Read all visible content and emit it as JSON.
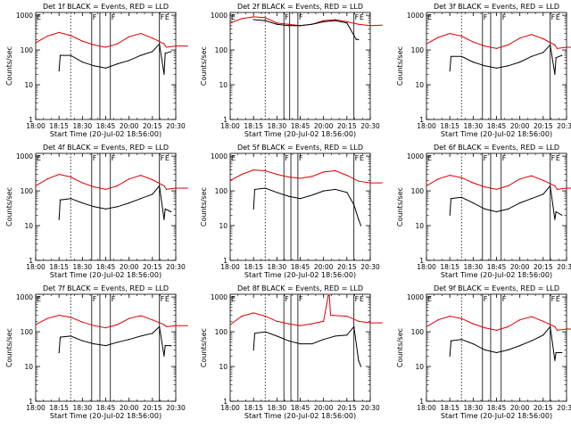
{
  "colors": {
    "events": "#000000",
    "lld": "#dd0000",
    "background": "#ffffff"
  },
  "chart_data": [
    {
      "type": "line",
      "title": "Det 1f BLACK = Events, RED = LLD",
      "xlabel": "Start Time (20-Jul-02 18:56:00)",
      "ylabel": "Counts/sec",
      "xticks": [
        "18:00",
        "18:15",
        "18:30",
        "18:45",
        "20:00",
        "20:15",
        "20:30"
      ],
      "yticks": [
        "1",
        "10",
        "100",
        "1000"
      ],
      "ylim": [
        1,
        1200
      ],
      "yscale": "log",
      "dotted_line_index": 1.5,
      "solid_lines": [
        2.4,
        2.75,
        3.2,
        5.3
      ],
      "flags": [
        {
          "pos": 0,
          "label": "E"
        },
        {
          "pos": 2.4,
          "label": "F"
        },
        {
          "pos": 3.2,
          "label": "F"
        },
        {
          "pos": 5.3,
          "label": "F"
        },
        {
          "pos": 5.5,
          "label": "E"
        }
      ],
      "series": [
        {
          "name": "LLD",
          "x": [
            0,
            0.5,
            1,
            1.5,
            2,
            2.5,
            3,
            3.5,
            4,
            4.5,
            5,
            5.5,
            5.6,
            6,
            6.5
          ],
          "values": [
            160,
            250,
            320,
            260,
            180,
            140,
            120,
            150,
            240,
            300,
            220,
            150,
            120,
            130,
            130
          ]
        },
        {
          "name": "Events",
          "x": [
            1,
            1.05,
            1.5,
            2,
            2.5,
            3,
            3.5,
            4,
            4.5,
            5,
            5.3,
            5.5,
            5.55,
            5.8
          ],
          "values": [
            25,
            70,
            70,
            45,
            35,
            30,
            40,
            50,
            70,
            90,
            150,
            20,
            80,
            90
          ]
        }
      ]
    },
    {
      "type": "line",
      "title": "Det 2f BLACK = Events, RED = LLD",
      "xlabel": "Start Time (20-Jul-02 18:56:00)",
      "ylabel": "Counts/sec",
      "xticks": [
        "18:00",
        "18:15",
        "18:30",
        "18:45",
        "20:00",
        "20:15",
        "20:30"
      ],
      "yticks": [
        "1",
        "10",
        "100",
        "1000"
      ],
      "ylim": [
        1,
        1200
      ],
      "yscale": "log",
      "dotted_line_index": 1.5,
      "solid_lines": [
        2.3,
        2.55,
        2.9,
        5.3
      ],
      "flags": [
        {
          "pos": 0,
          "label": "E"
        },
        {
          "pos": 2.3,
          "label": "F"
        },
        {
          "pos": 2.9,
          "label": "F"
        },
        {
          "pos": 5.3,
          "label": "F"
        },
        {
          "pos": 5.5,
          "label": "E"
        }
      ],
      "series": [
        {
          "name": "LLD",
          "x": [
            0,
            0.5,
            1,
            1.5,
            2,
            2.5,
            3,
            3.5,
            4,
            4.5,
            5,
            5.5,
            6,
            6.5
          ],
          "values": [
            600,
            800,
            900,
            850,
            600,
            550,
            500,
            550,
            700,
            750,
            650,
            550,
            500,
            520
          ]
        },
        {
          "name": "Events",
          "x": [
            1,
            1.5,
            2,
            2.5,
            3,
            3.5,
            4,
            4.5,
            5,
            5.4,
            5.5
          ],
          "values": [
            750,
            700,
            550,
            500,
            500,
            550,
            650,
            700,
            600,
            200,
            200
          ]
        }
      ]
    },
    {
      "type": "line",
      "title": "Det 3f BLACK = Events, RED = LLD",
      "xlabel": "Start Time (20-Jul-02 18:56:00)",
      "ylabel": "Counts/sec",
      "xticks": [
        "18:00",
        "18:15",
        "18:30",
        "18:45",
        "20:00",
        "20:15",
        "20:30"
      ],
      "yticks": [
        "1",
        "10",
        "100",
        "1000"
      ],
      "ylim": [
        1,
        1200
      ],
      "yscale": "log",
      "dotted_line_index": 1.5,
      "solid_lines": [
        2.4,
        2.75,
        3.2,
        5.3
      ],
      "flags": [
        {
          "pos": 0,
          "label": "E"
        },
        {
          "pos": 2.4,
          "label": "F"
        },
        {
          "pos": 3.2,
          "label": "F"
        },
        {
          "pos": 5.3,
          "label": "F"
        },
        {
          "pos": 5.5,
          "label": "E"
        }
      ],
      "series": [
        {
          "name": "LLD",
          "x": [
            0,
            0.5,
            1,
            1.5,
            2,
            2.5,
            3,
            3.5,
            4,
            4.5,
            5,
            5.5,
            5.6,
            6,
            6.5
          ],
          "values": [
            150,
            230,
            300,
            250,
            170,
            130,
            110,
            140,
            220,
            280,
            210,
            140,
            110,
            120,
            120
          ]
        },
        {
          "name": "Events",
          "x": [
            1,
            1.05,
            1.5,
            2,
            2.5,
            3,
            3.5,
            4,
            4.5,
            5,
            5.3,
            5.5,
            5.55,
            5.8
          ],
          "values": [
            25,
            65,
            65,
            45,
            35,
            30,
            35,
            45,
            65,
            85,
            140,
            20,
            60,
            70
          ]
        }
      ]
    },
    {
      "type": "line",
      "title": "Det 4f BLACK = Events, RED = LLD",
      "xlabel": "Start Time (20-Jul-02 18:56:00)",
      "ylabel": "Counts/sec",
      "xticks": [
        "18:00",
        "18:15",
        "18:30",
        "18:45",
        "20:00",
        "20:15",
        "20:30"
      ],
      "yticks": [
        "1",
        "10",
        "100",
        "1000"
      ],
      "ylim": [
        1,
        1200
      ],
      "yscale": "log",
      "dotted_line_index": 1.5,
      "solid_lines": [
        2.4,
        2.75,
        3.2,
        5.3
      ],
      "flags": [
        {
          "pos": 0,
          "label": "E"
        },
        {
          "pos": 2.4,
          "label": "F"
        },
        {
          "pos": 3.2,
          "label": "F"
        },
        {
          "pos": 5.3,
          "label": "F"
        },
        {
          "pos": 5.5,
          "label": "E"
        }
      ],
      "series": [
        {
          "name": "LLD",
          "x": [
            0,
            0.5,
            1,
            1.5,
            2,
            2.5,
            3,
            3.5,
            4,
            4.5,
            5,
            5.5,
            5.6,
            6,
            6.5
          ],
          "values": [
            140,
            220,
            300,
            250,
            170,
            130,
            110,
            140,
            220,
            280,
            210,
            140,
            110,
            120,
            120
          ]
        },
        {
          "name": "Events",
          "x": [
            1,
            1.05,
            1.5,
            2,
            2.5,
            3,
            3.5,
            4,
            4.5,
            5,
            5.3,
            5.5,
            5.55,
            5.8
          ],
          "values": [
            15,
            55,
            60,
            45,
            35,
            30,
            35,
            45,
            60,
            80,
            140,
            15,
            30,
            25
          ]
        }
      ]
    },
    {
      "type": "line",
      "title": "Det 5f BLACK = Events, RED = LLD",
      "xlabel": "Start Time (20-Jul-02 18:56:00)",
      "ylabel": "Counts/sec",
      "xticks": [
        "18:00",
        "18:15",
        "18:30",
        "18:45",
        "20:00",
        "20:15",
        "20:30"
      ],
      "yticks": [
        "1",
        "10",
        "100",
        "1000"
      ],
      "ylim": [
        1,
        1200
      ],
      "yscale": "log",
      "dotted_line_index": 1.5,
      "solid_lines": [
        2.3,
        2.6,
        2.9,
        5.3
      ],
      "flags": [
        {
          "pos": 0,
          "label": "E"
        },
        {
          "pos": 2.3,
          "label": "F"
        },
        {
          "pos": 2.9,
          "label": "F"
        },
        {
          "pos": 5.3,
          "label": "F"
        },
        {
          "pos": 5.5,
          "label": "E"
        }
      ],
      "series": [
        {
          "name": "LLD",
          "x": [
            0,
            0.5,
            1,
            1.5,
            2,
            2.5,
            3,
            3.5,
            4,
            4.5,
            5,
            5.5,
            6,
            6.5
          ],
          "values": [
            200,
            300,
            400,
            380,
            300,
            250,
            230,
            260,
            350,
            380,
            280,
            190,
            170,
            170
          ]
        },
        {
          "name": "Events",
          "x": [
            1,
            1.05,
            1.5,
            2,
            2.5,
            3,
            3.5,
            4,
            4.5,
            5,
            5.3,
            5.5,
            5.6
          ],
          "values": [
            30,
            110,
            120,
            90,
            70,
            60,
            75,
            100,
            110,
            90,
            40,
            15,
            10
          ]
        }
      ]
    },
    {
      "type": "line",
      "title": "Det 6f BLACK = Events, RED = LLD",
      "xlabel": "Start Time (20-Jul-02 18:56:00)",
      "ylabel": "Counts/sec",
      "xticks": [
        "18:00",
        "18:15",
        "18:30",
        "18:45",
        "20:00",
        "20:15",
        "20:30"
      ],
      "yticks": [
        "1",
        "10",
        "100",
        "1000"
      ],
      "ylim": [
        1,
        1200
      ],
      "yscale": "log",
      "dotted_line_index": 1.5,
      "solid_lines": [
        2.4,
        2.75,
        3.2,
        5.3
      ],
      "flags": [
        {
          "pos": 0,
          "label": "E"
        },
        {
          "pos": 2.4,
          "label": "F"
        },
        {
          "pos": 3.2,
          "label": "F"
        },
        {
          "pos": 5.3,
          "label": "F"
        },
        {
          "pos": 5.5,
          "label": "E"
        }
      ],
      "series": [
        {
          "name": "LLD",
          "x": [
            0,
            0.5,
            1,
            1.5,
            2,
            2.5,
            3,
            3.5,
            4,
            4.5,
            5,
            5.5,
            5.6,
            6,
            6.5
          ],
          "values": [
            140,
            220,
            280,
            240,
            170,
            130,
            110,
            140,
            220,
            270,
            200,
            140,
            110,
            120,
            120
          ]
        },
        {
          "name": "Events",
          "x": [
            1,
            1.05,
            1.5,
            2,
            2.5,
            3,
            3.5,
            4,
            4.5,
            5,
            5.3,
            5.5,
            5.55,
            5.8
          ],
          "values": [
            20,
            60,
            65,
            45,
            30,
            25,
            30,
            45,
            60,
            80,
            140,
            15,
            25,
            20
          ]
        }
      ]
    },
    {
      "type": "line",
      "title": "Det 7f BLACK = Events, RED = LLD",
      "xlabel": "Start Time (20-Jul-02 18:56:00)",
      "ylabel": "Counts/sec",
      "xticks": [
        "18:00",
        "18:15",
        "18:30",
        "18:45",
        "20:00",
        "20:15",
        "20:30"
      ],
      "yticks": [
        "1",
        "10",
        "100",
        "1000"
      ],
      "ylim": [
        1,
        1200
      ],
      "yscale": "log",
      "dotted_line_index": 1.5,
      "solid_lines": [
        2.4,
        2.75,
        3.2,
        5.3
      ],
      "flags": [
        {
          "pos": 0,
          "label": "E"
        },
        {
          "pos": 2.4,
          "label": "F"
        },
        {
          "pos": 3.2,
          "label": "F"
        },
        {
          "pos": 5.3,
          "label": "F"
        },
        {
          "pos": 5.5,
          "label": "E"
        }
      ],
      "series": [
        {
          "name": "LLD",
          "x": [
            0,
            0.5,
            1,
            1.5,
            2,
            2.5,
            3,
            3.5,
            4,
            4.5,
            5,
            5.5,
            5.6,
            6,
            6.5
          ],
          "values": [
            160,
            240,
            300,
            260,
            190,
            150,
            130,
            160,
            240,
            290,
            220,
            160,
            140,
            150,
            150
          ]
        },
        {
          "name": "Events",
          "x": [
            1,
            1.05,
            1.5,
            2,
            2.5,
            3,
            3.5,
            4,
            4.5,
            5,
            5.3,
            5.5,
            5.55,
            5.8
          ],
          "values": [
            25,
            70,
            75,
            55,
            45,
            40,
            50,
            60,
            75,
            90,
            140,
            20,
            40,
            40
          ]
        }
      ]
    },
    {
      "type": "line",
      "title": "Det 8f BLACK = Events, RED = LLD",
      "xlabel": "Start Time (20-Jul-02 18:56:00)",
      "ylabel": "Counts/sec",
      "xticks": [
        "18:00",
        "18:15",
        "18:30",
        "18:45",
        "20:00",
        "20:15",
        "20:30"
      ],
      "yticks": [
        "1",
        "10",
        "100",
        "1000"
      ],
      "ylim": [
        1,
        1200
      ],
      "yscale": "log",
      "dotted_line_index": 1.5,
      "solid_lines": [
        2.3,
        2.6,
        2.9,
        5.3
      ],
      "flags": [
        {
          "pos": 0,
          "label": "E"
        },
        {
          "pos": 2.3,
          "label": "F"
        },
        {
          "pos": 2.9,
          "label": "F"
        },
        {
          "pos": 5.3,
          "label": "F"
        },
        {
          "pos": 5.5,
          "label": "E"
        }
      ],
      "series": [
        {
          "name": "LLD",
          "x": [
            0,
            0.5,
            1,
            1.5,
            2,
            2.5,
            3,
            3.5,
            4,
            4.2,
            4.25,
            4.3,
            5,
            5.5,
            6,
            6.5
          ],
          "values": [
            160,
            280,
            350,
            280,
            200,
            170,
            150,
            170,
            200,
            1100,
            1100,
            300,
            280,
            200,
            180,
            180
          ]
        },
        {
          "name": "Events",
          "x": [
            1,
            1.05,
            1.5,
            2,
            2.5,
            3,
            3.5,
            4,
            4.5,
            5,
            5.3,
            5.5,
            5.6
          ],
          "values": [
            30,
            90,
            100,
            75,
            55,
            45,
            45,
            60,
            75,
            80,
            140,
            15,
            10
          ]
        }
      ]
    },
    {
      "type": "line",
      "title": "Det 9f BLACK = Events, RED = LLD",
      "xlabel": "Start Time (20-Jul-02 18:56:00)",
      "ylabel": "Counts/sec",
      "xticks": [
        "18:00",
        "18:15",
        "18:30",
        "18:45",
        "20:00",
        "20:15",
        "20:30"
      ],
      "yticks": [
        "1",
        "10",
        "100",
        "1000"
      ],
      "ylim": [
        1,
        1200
      ],
      "yscale": "log",
      "dotted_line_index": 1.5,
      "solid_lines": [
        2.4,
        2.75,
        3.2,
        5.3
      ],
      "flags": [
        {
          "pos": 0,
          "label": "E"
        },
        {
          "pos": 2.4,
          "label": "F"
        },
        {
          "pos": 3.2,
          "label": "F"
        },
        {
          "pos": 5.3,
          "label": "F"
        },
        {
          "pos": 5.5,
          "label": "E"
        }
      ],
      "series": [
        {
          "name": "LLD",
          "x": [
            0,
            0.5,
            1,
            1.5,
            2,
            2.5,
            3,
            3.5,
            4,
            4.5,
            5,
            5.5,
            5.6,
            6,
            6.5
          ],
          "values": [
            140,
            220,
            280,
            240,
            170,
            130,
            110,
            140,
            220,
            270,
            200,
            140,
            110,
            120,
            120
          ]
        },
        {
          "name": "Events",
          "x": [
            1,
            1.05,
            1.5,
            2,
            2.5,
            3,
            3.5,
            4,
            4.5,
            5,
            5.3,
            5.5,
            5.55,
            5.8
          ],
          "values": [
            20,
            55,
            60,
            45,
            30,
            25,
            30,
            40,
            55,
            80,
            140,
            15,
            25,
            25
          ]
        }
      ]
    }
  ]
}
